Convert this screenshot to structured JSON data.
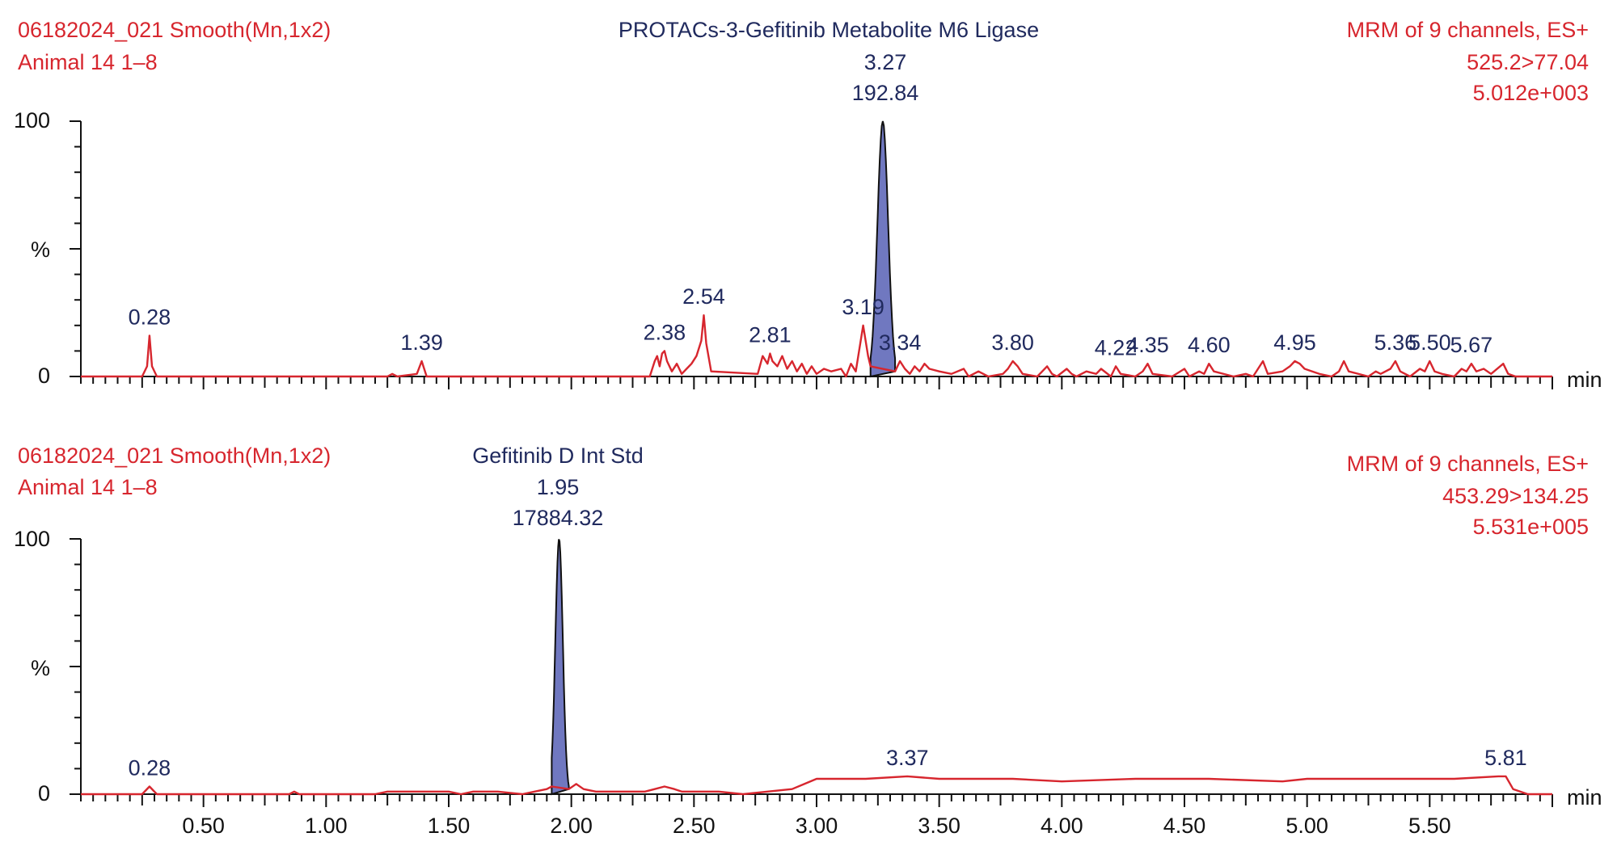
{
  "chart_data": [
    {
      "type": "line",
      "header": {
        "file_line": "06182024_021 Smooth(Mn,1x2)",
        "sample_line": "Animal 14 1–8",
        "compound": "PROTACs-3-Gefitinib Metabolite M6 Ligase",
        "peak_rt": "3.27",
        "peak_area": "192.84",
        "mrm_line": "MRM of 9 channels, ES+",
        "transition": "525.2>77.04",
        "intensity": "5.012e+003"
      },
      "xunit": "min",
      "ylabel": "%",
      "ylim": [
        0,
        100
      ],
      "yticks": [
        "0",
        "100"
      ],
      "xlim": [
        0,
        6
      ],
      "peak_labels": [
        {
          "text": "0.28",
          "x": 0.28,
          "y": 16
        },
        {
          "text": "1.39",
          "x": 1.39,
          "y": 6
        },
        {
          "text": "2.38",
          "x": 2.38,
          "y": 10
        },
        {
          "text": "2.54",
          "x": 2.54,
          "y": 24
        },
        {
          "text": "2.81",
          "x": 2.81,
          "y": 9
        },
        {
          "text": "3.19",
          "x": 3.19,
          "y": 20
        },
        {
          "text": "3.34",
          "x": 3.34,
          "y": 6
        },
        {
          "text": "3.80",
          "x": 3.8,
          "y": 6
        },
        {
          "text": "4.22",
          "x": 4.22,
          "y": 4
        },
        {
          "text": "4.35",
          "x": 4.35,
          "y": 5
        },
        {
          "text": "4.60",
          "x": 4.6,
          "y": 5
        },
        {
          "text": "4.95",
          "x": 4.95,
          "y": 6
        },
        {
          "text": "5.36",
          "x": 5.36,
          "y": 6
        },
        {
          "text": "5.50",
          "x": 5.5,
          "y": 6
        },
        {
          "text": "5.67",
          "x": 5.67,
          "y": 5
        }
      ],
      "shaded_peak": {
        "start": 3.22,
        "apex": 3.27,
        "end": 3.32,
        "height": 100
      },
      "series": [
        {
          "x": [
            0.0,
            0.25,
            0.27,
            0.28,
            0.29,
            0.31,
            1.25,
            1.27,
            1.29,
            1.37,
            1.39,
            1.41,
            2.32,
            2.34,
            2.35,
            2.36,
            2.37,
            2.38,
            2.39,
            2.41,
            2.43,
            2.45,
            2.47,
            2.49,
            2.51,
            2.53,
            2.54,
            2.55,
            2.57,
            2.76,
            2.78,
            2.8,
            2.81,
            2.82,
            2.84,
            2.86,
            2.88,
            2.9,
            2.92,
            2.94,
            2.96,
            2.98,
            3.0,
            3.03,
            3.06,
            3.1,
            3.12,
            3.14,
            3.16,
            3.19,
            3.21,
            3.22,
            3.32,
            3.34,
            3.36,
            3.38,
            3.4,
            3.42,
            3.44,
            3.46,
            3.5,
            3.55,
            3.6,
            3.62,
            3.66,
            3.7,
            3.76,
            3.78,
            3.8,
            3.82,
            3.84,
            3.9,
            3.94,
            3.96,
            3.98,
            4.02,
            4.04,
            4.06,
            4.1,
            4.14,
            4.16,
            4.2,
            4.22,
            4.24,
            4.3,
            4.33,
            4.35,
            4.37,
            4.45,
            4.5,
            4.52,
            4.56,
            4.58,
            4.6,
            4.62,
            4.7,
            4.75,
            4.78,
            4.8,
            4.82,
            4.84,
            4.9,
            4.93,
            4.95,
            4.97,
            4.99,
            5.05,
            5.1,
            5.13,
            5.15,
            5.17,
            5.25,
            5.28,
            5.3,
            5.34,
            5.36,
            5.38,
            5.42,
            5.46,
            5.48,
            5.5,
            5.52,
            5.55,
            5.6,
            5.63,
            5.65,
            5.67,
            5.69,
            5.72,
            5.75,
            5.8,
            5.82,
            5.85,
            6.0
          ],
          "y": [
            0,
            0,
            4,
            16,
            4,
            0,
            0,
            1,
            0,
            1,
            6,
            0,
            0,
            6,
            8,
            4,
            9,
            10,
            6,
            2,
            5,
            1,
            3,
            5,
            8,
            14,
            24,
            13,
            2,
            1,
            8,
            5,
            9,
            6,
            4,
            8,
            3,
            6,
            2,
            5,
            1,
            4,
            1,
            3,
            2,
            3,
            0,
            5,
            2,
            20,
            8,
            4,
            2,
            6,
            3,
            1,
            4,
            2,
            5,
            3,
            2,
            1,
            3,
            0,
            2,
            0,
            1,
            3,
            6,
            4,
            1,
            0,
            4,
            1,
            0,
            3,
            1,
            0,
            2,
            1,
            3,
            0,
            4,
            1,
            0,
            2,
            5,
            1,
            0,
            3,
            0,
            2,
            1,
            5,
            2,
            0,
            1,
            0,
            3,
            6,
            1,
            2,
            4,
            6,
            5,
            3,
            1,
            0,
            2,
            6,
            2,
            0,
            2,
            1,
            3,
            6,
            2,
            0,
            3,
            2,
            6,
            2,
            1,
            0,
            3,
            2,
            5,
            2,
            3,
            1,
            5,
            1,
            0,
            0
          ]
        }
      ]
    },
    {
      "type": "line",
      "header": {
        "file_line": "06182024_021 Smooth(Mn,1x2)",
        "sample_line": "Animal 14 1–8",
        "compound": "Gefitinib D Int Std",
        "peak_rt": "1.95",
        "peak_area": "17884.32",
        "mrm_line": "MRM of 9 channels, ES+",
        "transition": "453.29>134.25",
        "intensity": "5.531e+005"
      },
      "xunit": "min",
      "ylabel": "%",
      "ylim": [
        0,
        100
      ],
      "yticks": [
        "0",
        "100"
      ],
      "xlim": [
        0,
        6
      ],
      "xticks": [
        0.5,
        1.0,
        1.5,
        2.0,
        2.5,
        3.0,
        3.5,
        4.0,
        4.5,
        5.0,
        5.5
      ],
      "xtick_labels": [
        "0.50",
        "1.00",
        "1.50",
        "2.00",
        "2.50",
        "3.00",
        "3.50",
        "4.00",
        "4.50",
        "5.00",
        "5.50"
      ],
      "peak_labels": [
        {
          "text": "0.28",
          "x": 0.28,
          "y": 3
        },
        {
          "text": "3.37",
          "x": 3.37,
          "y": 7
        },
        {
          "text": "5.81",
          "x": 5.81,
          "y": 7
        }
      ],
      "shaded_peak": {
        "start": 1.92,
        "apex": 1.95,
        "end": 1.99,
        "height": 100
      },
      "series": [
        {
          "x": [
            0.0,
            0.25,
            0.28,
            0.31,
            0.5,
            0.85,
            0.87,
            0.89,
            1.2,
            1.25,
            1.3,
            1.4,
            1.5,
            1.55,
            1.6,
            1.7,
            1.8,
            1.85,
            1.9,
            1.92,
            1.99,
            2.02,
            2.05,
            2.1,
            2.2,
            2.3,
            2.34,
            2.38,
            2.42,
            2.45,
            2.5,
            2.6,
            2.7,
            2.8,
            2.9,
            2.95,
            3.0,
            3.2,
            3.37,
            3.5,
            3.8,
            4.0,
            4.3,
            4.6,
            4.9,
            5.0,
            5.3,
            5.6,
            5.78,
            5.81,
            5.84,
            5.9,
            6.0
          ],
          "y": [
            0,
            0,
            3,
            0,
            0,
            0,
            1,
            0,
            0,
            1,
            1,
            1,
            1,
            0,
            1,
            1,
            0,
            1,
            2,
            3,
            2,
            4,
            2,
            1,
            1,
            1,
            2,
            3,
            2,
            1,
            1,
            1,
            0,
            1,
            2,
            4,
            6,
            6,
            7,
            6,
            6,
            5,
            6,
            6,
            5,
            6,
            6,
            6,
            7,
            7,
            2,
            0,
            0
          ]
        }
      ]
    }
  ]
}
